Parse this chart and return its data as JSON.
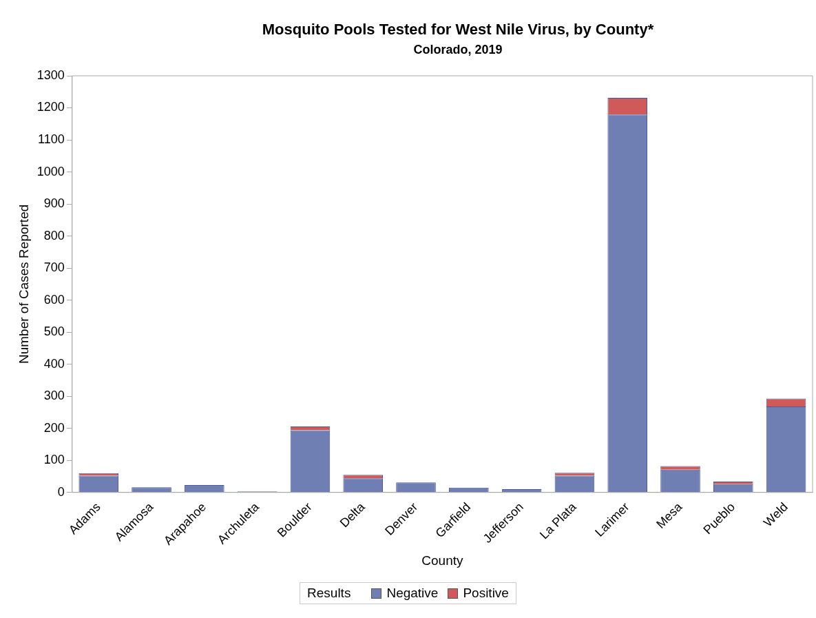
{
  "chart_data": {
    "type": "bar",
    "title": "Mosquito Pools Tested for West Nile Virus, by County*",
    "subtitle": "Colorado, 2019",
    "xlabel": "County",
    "ylabel": "Number of Cases Reported",
    "legend_title": "Results",
    "categories": [
      "Adams",
      "Alamosa",
      "Arapahoe",
      "Archuleta",
      "Boulder",
      "Delta",
      "Denver",
      "Garfield",
      "Jefferson",
      "La Plata",
      "Larimer",
      "Mesa",
      "Pueblo",
      "Weld"
    ],
    "series": [
      {
        "name": "Negative",
        "color": "#6f7fb3",
        "values": [
          52,
          16,
          23,
          3,
          194,
          44,
          31,
          15,
          10,
          52,
          1179,
          71,
          26,
          268
        ]
      },
      {
        "name": "Positive",
        "color": "#d05a5a",
        "values": [
          8,
          null,
          null,
          null,
          12,
          11,
          null,
          null,
          null,
          9,
          52,
          11,
          8,
          25
        ]
      }
    ],
    "stacked": true,
    "ylim": [
      0,
      1300
    ],
    "yticks": [
      0,
      100,
      200,
      300,
      400,
      500,
      600,
      700,
      800,
      900,
      1000,
      1100,
      1200,
      1300
    ],
    "grid": false,
    "legend": "bottom"
  }
}
